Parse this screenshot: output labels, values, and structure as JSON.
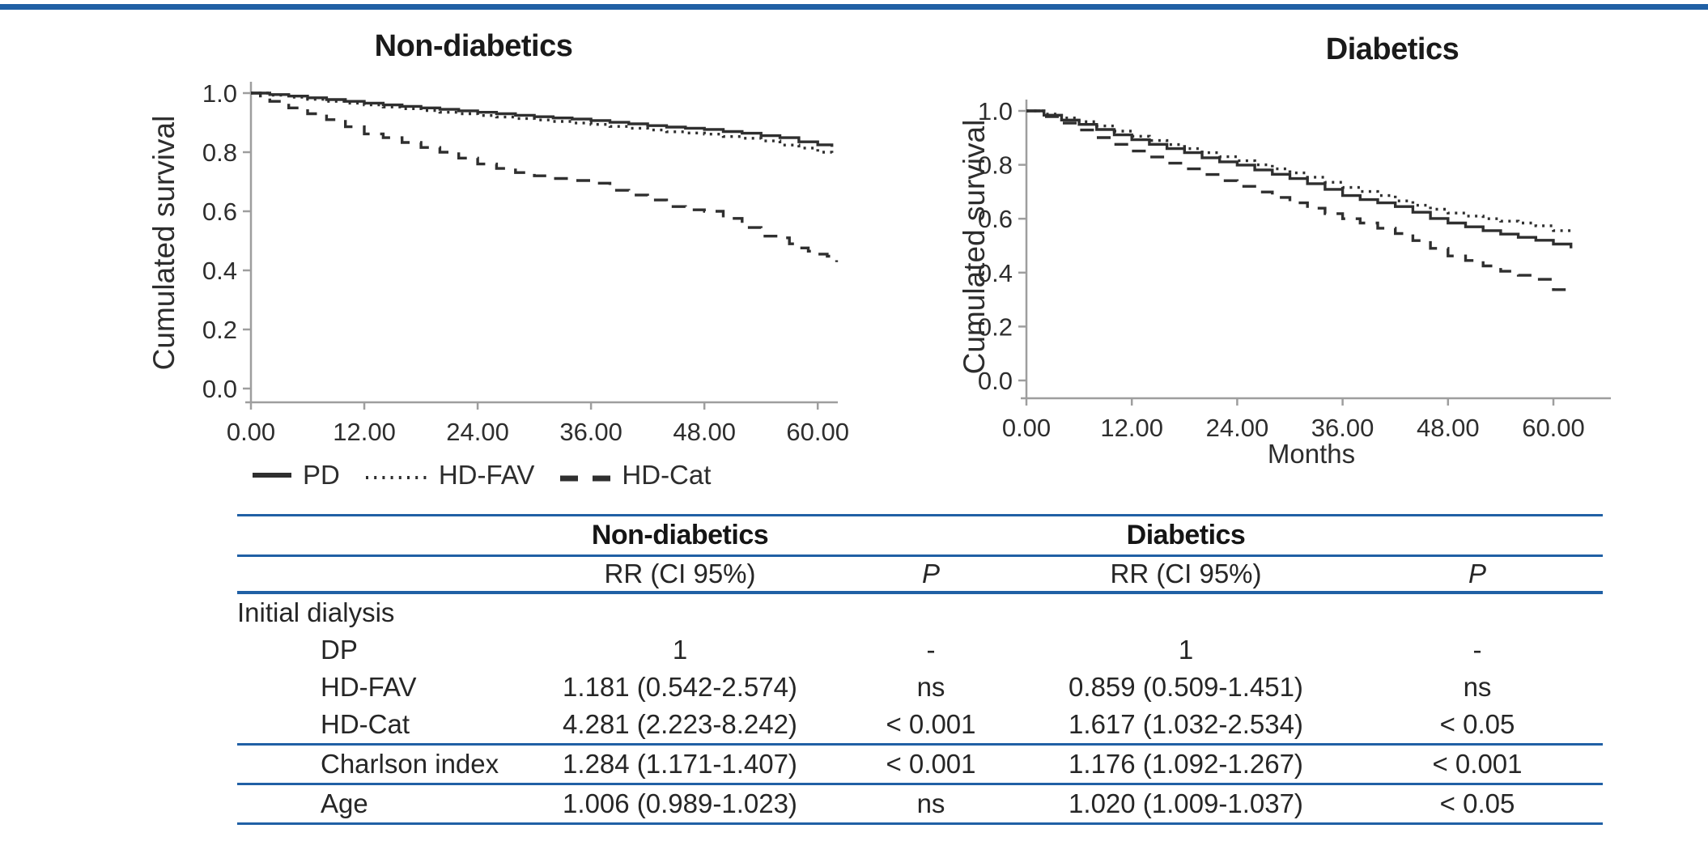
{
  "colors": {
    "accent_blue": "#2060a5",
    "curve": "#2f2f2f",
    "axis": "#9e9e9e"
  },
  "legend": {
    "items": [
      {
        "label": "PD",
        "style": "solid"
      },
      {
        "label": "HD-FAV",
        "style": "dotted"
      },
      {
        "label": "HD-Cat",
        "style": "dashed"
      }
    ]
  },
  "chart_data": [
    {
      "type": "line",
      "title": "Non-diabetics",
      "xlabel": "",
      "ylabel": "Cumulated survival",
      "xlim": [
        0,
        63
      ],
      "ylim": [
        0.0,
        1.0
      ],
      "grid": false,
      "legend_position": "below-left-chart",
      "x_ticks": [
        0,
        12,
        24,
        36,
        48,
        60
      ],
      "x_tick_labels": [
        "0.00",
        "12.00",
        "24.00",
        "36.00",
        "48.00",
        "60.00"
      ],
      "y_ticks": [
        1.0,
        0.8,
        0.6,
        0.4,
        0.2,
        0.0
      ],
      "y_tick_labels": [
        "1.0",
        "0.8",
        "0.6",
        "0.4",
        "0.2",
        "0.0"
      ],
      "series": [
        {
          "name": "PD",
          "line_style": "solid",
          "x": [
            0,
            2,
            4,
            6,
            8,
            10,
            12,
            14,
            16,
            18,
            20,
            22,
            24,
            26,
            28,
            30,
            32,
            34,
            36,
            38,
            40,
            42,
            44,
            46,
            48,
            50,
            52,
            54,
            56,
            58,
            60,
            61.5
          ],
          "y": [
            1.0,
            0.995,
            0.99,
            0.984,
            0.978,
            0.972,
            0.966,
            0.96,
            0.955,
            0.95,
            0.945,
            0.94,
            0.935,
            0.93,
            0.925,
            0.92,
            0.916,
            0.912,
            0.907,
            0.901,
            0.896,
            0.89,
            0.885,
            0.881,
            0.877,
            0.87,
            0.864,
            0.856,
            0.849,
            0.835,
            0.825,
            0.818
          ]
        },
        {
          "name": "HD-FAV",
          "line_style": "dotted",
          "x": [
            0,
            2,
            4,
            6,
            8,
            10,
            12,
            14,
            16,
            18,
            20,
            22,
            24,
            26,
            28,
            30,
            32,
            34,
            36,
            38,
            40,
            42,
            44,
            46,
            48,
            50,
            52,
            54,
            56,
            58,
            60,
            61.5
          ],
          "y": [
            1.0,
            0.993,
            0.986,
            0.979,
            0.972,
            0.966,
            0.96,
            0.953,
            0.947,
            0.941,
            0.935,
            0.93,
            0.924,
            0.919,
            0.914,
            0.909,
            0.904,
            0.899,
            0.894,
            0.887,
            0.881,
            0.875,
            0.869,
            0.865,
            0.861,
            0.853,
            0.847,
            0.838,
            0.824,
            0.814,
            0.8,
            0.79
          ]
        },
        {
          "name": "HD-Cat",
          "line_style": "dashed",
          "x": [
            0,
            1,
            2,
            4,
            6,
            8,
            10,
            12,
            14,
            16,
            18,
            20,
            22,
            24,
            26,
            28,
            30,
            32,
            34,
            36,
            38,
            40,
            42,
            44,
            46,
            48,
            50,
            52,
            54,
            56,
            57,
            58,
            59,
            60,
            61,
            62
          ],
          "y": [
            1.0,
            0.985,
            0.972,
            0.95,
            0.93,
            0.91,
            0.886,
            0.862,
            0.849,
            0.833,
            0.816,
            0.8,
            0.78,
            0.76,
            0.745,
            0.731,
            0.72,
            0.711,
            0.704,
            0.695,
            0.671,
            0.655,
            0.638,
            0.616,
            0.605,
            0.6,
            0.576,
            0.545,
            0.516,
            0.51,
            0.49,
            0.476,
            0.465,
            0.455,
            0.448,
            0.428
          ]
        }
      ]
    },
    {
      "type": "line",
      "title": "Diabetics",
      "xlabel": "Months",
      "ylabel": "Cumulated survival",
      "xlim": [
        0,
        63
      ],
      "ylim": [
        0.0,
        1.0
      ],
      "grid": false,
      "x_ticks": [
        0,
        12,
        24,
        36,
        48,
        60
      ],
      "x_tick_labels": [
        "0.00",
        "12.00",
        "24.00",
        "36.00",
        "48.00",
        "60.00"
      ],
      "y_ticks": [
        1.0,
        0.8,
        0.6,
        0.4,
        0.2,
        0.0
      ],
      "y_tick_labels": [
        "1.0",
        "0.8",
        "0.6",
        "0.4",
        "0.2",
        "0.0"
      ],
      "series": [
        {
          "name": "PD",
          "line_style": "solid",
          "x": [
            0,
            2,
            4,
            6,
            8,
            10,
            12,
            14,
            16,
            18,
            20,
            22,
            24,
            26,
            28,
            30,
            32,
            34,
            36,
            38,
            40,
            42,
            44,
            46,
            48,
            50,
            52,
            54,
            56,
            58,
            60,
            62
          ],
          "y": [
            1.0,
            0.984,
            0.966,
            0.95,
            0.931,
            0.911,
            0.893,
            0.876,
            0.86,
            0.845,
            0.826,
            0.811,
            0.799,
            0.781,
            0.765,
            0.749,
            0.73,
            0.709,
            0.686,
            0.671,
            0.659,
            0.645,
            0.624,
            0.601,
            0.584,
            0.57,
            0.556,
            0.543,
            0.531,
            0.52,
            0.506,
            0.49
          ]
        },
        {
          "name": "HD-FAV",
          "line_style": "dotted",
          "x": [
            0,
            2,
            4,
            6,
            8,
            10,
            12,
            14,
            16,
            18,
            20,
            22,
            24,
            26,
            28,
            30,
            32,
            34,
            36,
            38,
            40,
            42,
            44,
            46,
            48,
            50,
            52,
            54,
            56,
            58,
            60,
            62
          ],
          "y": [
            1.0,
            0.988,
            0.974,
            0.96,
            0.944,
            0.925,
            0.906,
            0.89,
            0.875,
            0.86,
            0.845,
            0.83,
            0.815,
            0.8,
            0.785,
            0.77,
            0.754,
            0.735,
            0.716,
            0.701,
            0.686,
            0.666,
            0.65,
            0.635,
            0.621,
            0.61,
            0.6,
            0.591,
            0.584,
            0.574,
            0.556,
            0.545
          ]
        },
        {
          "name": "HD-Cat",
          "line_style": "dashed",
          "x": [
            0,
            2,
            4,
            6,
            8,
            10,
            12,
            14,
            16,
            18,
            20,
            22,
            24,
            26,
            28,
            30,
            32,
            34,
            36,
            38,
            40,
            42,
            44,
            46,
            48,
            50,
            52,
            54,
            56,
            58,
            60,
            62
          ],
          "y": [
            1.0,
            0.979,
            0.955,
            0.929,
            0.901,
            0.876,
            0.851,
            0.829,
            0.806,
            0.785,
            0.764,
            0.741,
            0.72,
            0.699,
            0.679,
            0.659,
            0.639,
            0.619,
            0.6,
            0.584,
            0.565,
            0.545,
            0.519,
            0.49,
            0.462,
            0.445,
            0.425,
            0.405,
            0.39,
            0.375,
            0.337,
            0.33
          ]
        }
      ]
    },
    {
      "type": "table",
      "group_headers": [
        "Non-diabetics",
        "Diabetics"
      ],
      "col_headers": [
        "",
        "RR (CI 95%)",
        "P",
        "RR (CI 95%)",
        "P"
      ],
      "rows": [
        {
          "label": "Initial dialysis",
          "indent": false,
          "cells": [
            "",
            "",
            "",
            ""
          ]
        },
        {
          "label": "DP",
          "indent": true,
          "cells": [
            "1",
            "-",
            "1",
            "-"
          ]
        },
        {
          "label": "HD-FAV",
          "indent": true,
          "cells": [
            "1.181 (0.542-2.574)",
            "ns",
            "0.859 (0.509-1.451)",
            "ns"
          ]
        },
        {
          "label": "HD-Cat",
          "indent": true,
          "cells": [
            "4.281 (2.223-8.242)",
            "< 0.001",
            "1.617 (1.032-2.534)",
            "< 0.05"
          ]
        },
        {
          "label": "Charlson index",
          "indent": true,
          "cells": [
            "1.284 (1.171-1.407)",
            "< 0.001",
            "1.176 (1.092-1.267)",
            "< 0.001"
          ]
        },
        {
          "label": "Age",
          "indent": true,
          "cells": [
            "1.006 (0.989-1.023)",
            "ns",
            "1.020 (1.009-1.037)",
            "< 0.05"
          ]
        }
      ]
    }
  ]
}
